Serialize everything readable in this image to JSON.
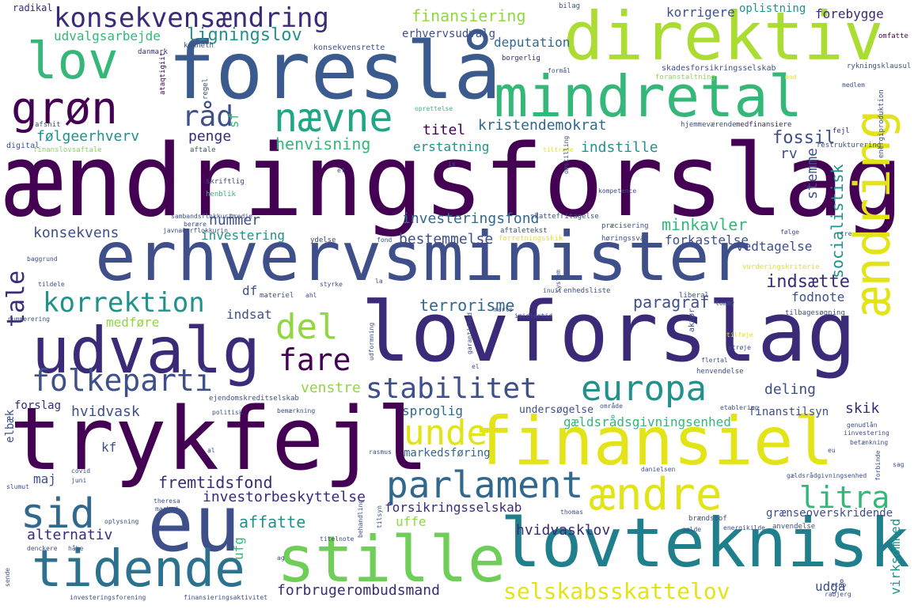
{
  "palette": {
    "purple": "#440154",
    "indigo": "#3b2a78",
    "blue": "#31688e",
    "slate": "#3e4f8a",
    "teal": "#21918c",
    "green": "#35b779",
    "lime": "#90d743",
    "yellow": "#e3e418"
  },
  "words": {
    "aendringsforslag": "ændringsforslag",
    "foreslaa": "foreslå",
    "erhvervsminister": "erhvervsminister",
    "lovforslag": "lovforslag",
    "trykfejl": "trykfejl",
    "eu": "eu",
    "direktiv": "direktiv",
    "mindretal": "mindretal",
    "lovteknisk": "lovteknisk",
    "finansiel": "finansiel",
    "stille": "stille",
    "tidende": "tidende",
    "udvalg": "udvalg",
    "lov": "lov",
    "groen": "grøn",
    "naevne": "nævne",
    "aendring": "ændring",
    "konsekvensaendring": "konsekvensændring",
    "aendre": "ændre",
    "parlament": "parlament",
    "europa": "europa",
    "sid": "sid",
    "unde": "unde",
    "del": "del",
    "korrektion": "korrektion",
    "folkeparti": "folkeparti",
    "stabilitet": "stabilitet",
    "selskabsskattelov": "selskabsskattelov",
    "raad": "råd",
    "fare": "fare",
    "litra": "litra",
    "tale": "tale",
    "finansiering": "finansiering",
    "ligningslov": "ligningslov",
    "udvalgsarbejde": "udvalgsarbejde",
    "erhvervsudvalg": "erhvervsudvalg",
    "korrigere": "korrigere",
    "oplistning": "oplistning",
    "forebygge": "forebygge",
    "deputation": "deputation",
    "kristendemokrat": "kristendemokrat",
    "titel": "titel",
    "henvisning": "henvisning",
    "penge": "penge",
    "foelgeerhverv": "følgeerhverv",
    "erstatning": "erstatning",
    "indstille": "indstille",
    "fossil": "fossil",
    "stemme": "stemme",
    "socialistisk": "socialistisk",
    "konsekvens": "konsekvens",
    "nummer": "nummer",
    "investeringsfond": "investeringsfond",
    "investering": "investering",
    "bestemmelse": "bestemmelse",
    "forkastelse": "forkastelse",
    "minkavler": "minkavler",
    "vedtagelse": "vedtagelse",
    "indsaette": "indsætte",
    "terrorisme": "terrorisme",
    "paragraf": "paragraf",
    "fodnote": "fodnote",
    "indsat": "indsat",
    "medfoere": "medføre",
    "df": "df",
    "venstre": "venstre",
    "hvidvask": "hvidvask",
    "forslag": "forslag",
    "sproglig": "sproglig",
    "deling": "deling",
    "skik": "skik",
    "finanstilsyn": "finanstilsyn",
    "undersoegelse": "undersøgelse",
    "gaeldsraadsgivningsenhed": "gældsrådsgivningsenhed",
    "markedsfoering": "markedsføring",
    "kf": "kf",
    "maj": "maj",
    "fremtidsfond": "fremtidsfond",
    "investorbeskyttelse": "investorbeskyttelse",
    "affatte": "affatte",
    "forsikringsselskab": "forsikringsselskab",
    "uffe": "uffe",
    "alternativ": "alternativ",
    "hvidvasklov": "hvidvasklov",
    "graenseoverskridende": "grænseoverskridende",
    "forbrugerombudsmand": "forbrugerombudsmand",
    "udgaa": "udgå",
    "virksomhed": "virksomhed",
    "ufg": "ufg",
    "sf": "sf",
    "rv": "rv",
    "elbaek": "elbæk",
    "radikal": "radikal",
    "bilag": "bilag",
    "kenneth": "kenneth",
    "danmark": "danmark",
    "konsekvensrette": "konsekvensrette",
    "borgerlig": "borgerlig",
    "omfatte": "omfatte",
    "skadesforsikringsselskab": "skadesforsikringsselskab",
    "rykningsklausul": "rykningsklausul",
    "energiproduktion": "energiproduktion",
    "medfinansiere": "medfinansiere",
    "restrukturering": "restrukturering",
    "digital": "digital",
    "finanslovsaftale": "finanslovsaftale",
    "aftale": "aftale",
    "hjemmevaerende": "hjemmeværende",
    "skriftlig": "skriftlig",
    "kompetence": "kompetence",
    "henblik": "henblik",
    "skattefritagelse": "skattefritagelse",
    "praecisering": "præcisering",
    "hoeringssvar": "høringssvar",
    "ydelse": "ydelse",
    "aftaletekst": "aftaletekst",
    "forretningsskik": "forretningsskik",
    "vurderingskriterie": "vurderingskriterie",
    "system": "system",
    "enhedsliste": "enhedsliste",
    "liberal": "liberal",
    "tommy": "tommy",
    "aktoer": "aktør",
    "tilbagesoegning": "tilbagesøgning",
    "nummerering": "nummerering",
    "materiel": "materiel",
    "marts": "marts",
    "imidlertid": "imidlertid",
    "garantifond": "garantifond",
    "hvidvasken": "hvidvasken",
    "tilfoeje": "tilføje",
    "stroeje": "strøje",
    "flertal": "flertal",
    "henvendelse": "henvendelse",
    "ejendomskreditselskab": "ejendomskreditselskab",
    "politisk": "politisk",
    "bemaerkning": "bemærkning",
    "etablering": "etablering",
    "genudlaan": "genudlån",
    "betaenkning": "betænkning",
    "ilinvestering": "iinvestering",
    "forbinde": "forbinde",
    "sag": "sag",
    "gaeldsraadgivningsenhed": "gældsrådgivningsenhed",
    "rasmus": "rasmus",
    "danielsen": "danielsen",
    "covid": "covid",
    "juni": "juni",
    "slumut": "slumut",
    "theresa": "theresa",
    "oplysning": "oplysning",
    "thomas": "thomas",
    "braendstof": "brændstof",
    "gaelde": "gælde",
    "energikilde": "energikilde",
    "anvendelse": "anvendelse",
    "stop": "stop",
    "rabjerg": "rabjerg",
    "investeringsforening": "investeringsforening",
    "finansieringsaktivitet": "finansieringsaktivitet",
    "titelnote": "titelnote",
    "denckere": "denckere",
    "sende": "sende",
    "baggrund": "baggrund",
    "tildele": "tildele",
    "styrke": "styrke",
    "ahl": "ahl",
    "beraere": "berære",
    "javnaebrflokkurin": "javnaðarflokkurin",
    "sambandsflokkurin": "sambandsflokkurin",
    "tredje": "tredje",
    "fond": "fond",
    "foelge": "følge",
    "tre": "tre",
    "medlem": "medlem",
    "mod": "mod",
    "foranstaltning": "foranstaltning",
    "oprettelse": "oprettelse",
    "tiltraede": "tiltræde",
    "omstilling": "omstilling",
    "afsnit": "afsnit",
    "regel": "regel",
    "atangitit": "ataqtigiit",
    "formaal": "formål",
    "feji": "fejl",
    "ix": "ix",
    "ef": "ef",
    "la": "la",
    "inuit": "inuit",
    "al": "al",
    "el": "el",
    "udformning": "udformning",
    "behandling": "behandling",
    "marked": "marked",
    "fejle": "fejle",
    "haabe": "håbe",
    "ag": "ag",
    "tilsyn": "tilsyn",
    "omraade": "område",
    "eu_small": "eu"
  }
}
